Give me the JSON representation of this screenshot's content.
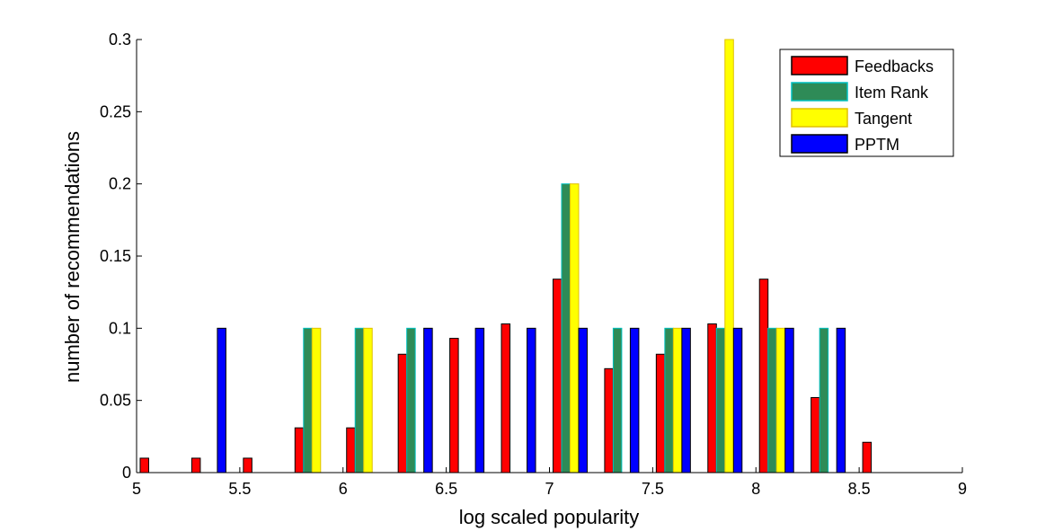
{
  "chart_data": {
    "type": "bar",
    "title": "",
    "xlabel": "log scaled popularity",
    "ylabel": "number of recommendations",
    "xlim": [
      5,
      9
    ],
    "ylim": [
      0,
      0.3
    ],
    "xticks": [
      "5",
      "5.5",
      "6",
      "6.5",
      "7",
      "7.5",
      "8",
      "8.5",
      "9"
    ],
    "yticks": [
      "0",
      "0.05",
      "0.1",
      "0.15",
      "0.2",
      "0.25",
      "0.3"
    ],
    "legend_position": "top-right",
    "x": [
      5.1,
      5.35,
      5.6,
      5.85,
      6.1,
      6.35,
      6.6,
      6.85,
      7.1,
      7.35,
      7.6,
      7.85,
      8.1,
      8.35,
      8.6,
      8.85
    ],
    "series": [
      {
        "name": "Feedbacks",
        "color": "#ff0000",
        "edge": "#000000",
        "values": [
          0.01,
          0.01,
          0.01,
          0.031,
          0.031,
          0.082,
          0.093,
          0.103,
          0.134,
          0.072,
          0.082,
          0.103,
          0.134,
          0.052,
          0.021,
          0
        ]
      },
      {
        "name": "Item Rank",
        "color": "#2e8b57",
        "edge": "#00c0c0",
        "values": [
          0,
          0,
          0,
          0.1,
          0.1,
          0.1,
          0,
          0,
          0.2,
          0.1,
          0.1,
          0.1,
          0.1,
          0.1,
          0,
          0
        ]
      },
      {
        "name": "Tangent",
        "color": "#ffff00",
        "edge": "#e0c000",
        "values": [
          0,
          0,
          0,
          0.1,
          0.1,
          0,
          0,
          0,
          0.2,
          0,
          0.1,
          0.3,
          0.1,
          0,
          0,
          0
        ]
      },
      {
        "name": "PPTM",
        "color": "#0000ff",
        "edge": "#000000",
        "values": [
          0,
          0.1,
          0,
          0,
          0,
          0.1,
          0.1,
          0.1,
          0.1,
          0.1,
          0.1,
          0.1,
          0.1,
          0.1,
          0,
          0
        ]
      }
    ]
  }
}
